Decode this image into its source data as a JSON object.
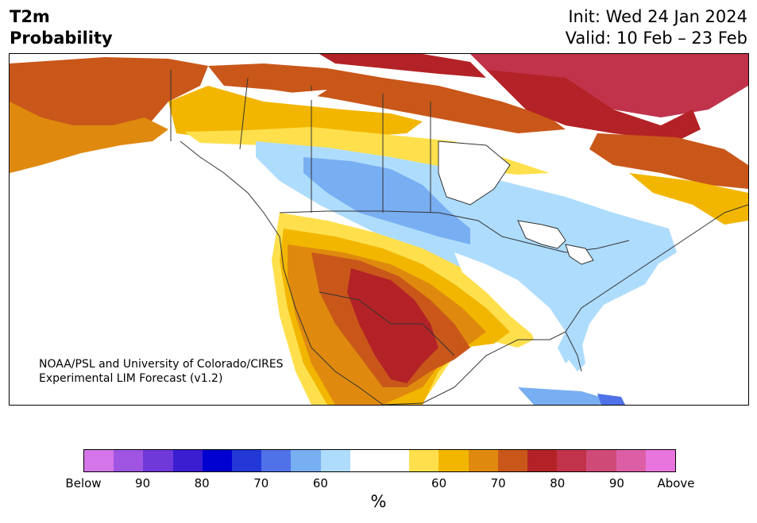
{
  "header": {
    "title_line1": "T2m",
    "title_line2": "Probability",
    "init": "Init: Wed 24 Jan 2024",
    "valid": "Valid: 10 Feb – 23 Feb"
  },
  "credit": {
    "line1": "NOAA/PSL and University of Colorado/CIRES",
    "line2": "Experimental LIM Forecast (v1.2)"
  },
  "colorbar": {
    "colors": [
      "#d575ea",
      "#9f55e2",
      "#6f38d8",
      "#3a1ed0",
      "#0000d0",
      "#2438d8",
      "#4f72e8",
      "#78aef2",
      "#aedcfc",
      "#ffffff",
      "#ffffff",
      "#ffe04c",
      "#f2b600",
      "#df8a0e",
      "#c9571a",
      "#b32226",
      "#c0334a",
      "#d04a78",
      "#dc5fa6",
      "#e875de"
    ],
    "labels": [
      "Below",
      "90",
      "80",
      "70",
      "60",
      "60",
      "70",
      "80",
      "90",
      "Above"
    ],
    "unit": "%"
  },
  "map": {
    "palette": {
      "below_90": "#9f55e2",
      "below_60": "#78aef2",
      "below_50": "#aedcfc",
      "blue_deep": "#4f72e8",
      "near_normal": "#ffffff",
      "above_50": "#ffe04c",
      "above_60": "#f2b600",
      "above_70": "#df8a0e",
      "above_75": "#c9571a",
      "above_80": "#b32226",
      "above_85": "#c0334a",
      "border": "#333333"
    }
  }
}
